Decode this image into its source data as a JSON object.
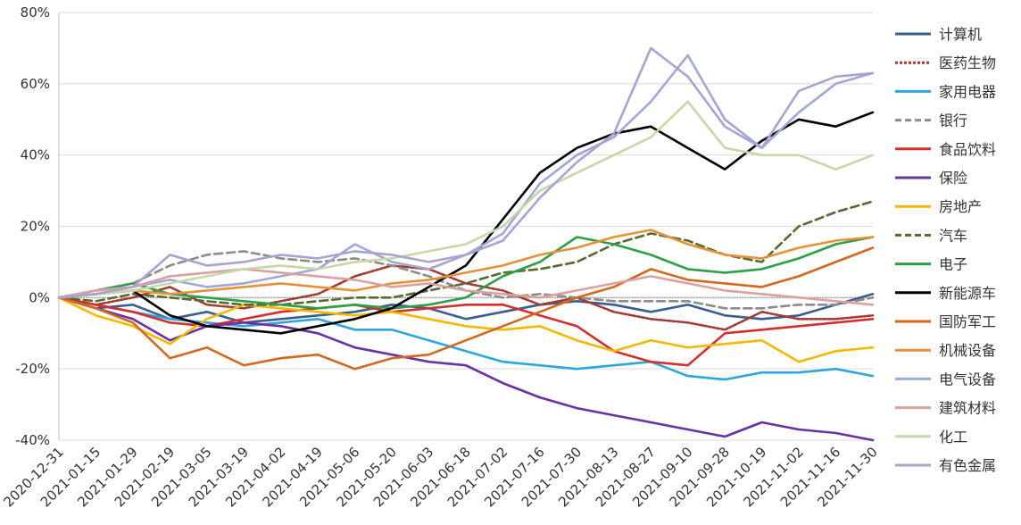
{
  "chart_data": {
    "type": "line",
    "title": "",
    "xlabel": "",
    "ylabel": "",
    "ylim": [
      -40,
      80
    ],
    "y_ticks": [
      "80%",
      "60%",
      "40%",
      "20%",
      "0%",
      "-20%",
      "-40%"
    ],
    "y_tick_values": [
      80,
      60,
      40,
      20,
      0,
      -20,
      -40
    ],
    "x_ticks": [
      "2020-12-31",
      "2021-01-15",
      "2021-01-29",
      "2021-02-19",
      "2021-03-05",
      "2021-03-19",
      "2021-04-02",
      "2021-04-19",
      "2021-05-06",
      "2021-05-20",
      "2021-06-03",
      "2021-06-18",
      "2021-07-02",
      "2021-07-16",
      "2021-07-30",
      "2021-08-13",
      "2021-08-27",
      "2021-09-10",
      "2021-09-28",
      "2021-10-19",
      "2021-11-02",
      "2021-11-16",
      "2021-11-30"
    ],
    "grid": "horizontal",
    "legend_position": "right",
    "series": [
      {
        "name": "计算机",
        "color": "#3a5f8f",
        "dash": "solid",
        "values": [
          0,
          -3,
          -2,
          -6,
          -4,
          -7,
          -6,
          -5,
          -4,
          -2,
          -3,
          -6,
          -4,
          -2,
          -1,
          -2,
          -4,
          -2,
          -5,
          -6,
          -5,
          -2,
          1
        ]
      },
      {
        "name": "医药生物",
        "color": "#a33a32",
        "dash": "cross",
        "values": [
          0,
          -2,
          0,
          3,
          -2,
          -3,
          -1,
          1,
          6,
          9,
          8,
          4,
          2,
          -2,
          0,
          -4,
          -6,
          -7,
          -9,
          -4,
          -6,
          -6,
          -5
        ]
      },
      {
        "name": "家用电器",
        "color": "#2ea6dd",
        "dash": "solid",
        "values": [
          0,
          -2,
          -4,
          -6,
          -7,
          -8,
          -7,
          -6,
          -9,
          -9,
          -12,
          -15,
          -18,
          -19,
          -20,
          -19,
          -18,
          -22,
          -23,
          -21,
          -21,
          -20,
          -22
        ]
      },
      {
        "name": "银行",
        "color": "#8c8c8c",
        "dash": "dashed",
        "values": [
          0,
          2,
          4,
          9,
          12,
          13,
          11,
          10,
          11,
          9,
          6,
          2,
          0,
          1,
          0,
          -1,
          -1,
          -1,
          -3,
          -3,
          -2,
          -2,
          0
        ]
      },
      {
        "name": "食品饮料",
        "color": "#d32f2f",
        "dash": "solid",
        "values": [
          0,
          -2,
          -4,
          -7,
          -8,
          -6,
          -4,
          -3,
          -2,
          -4,
          -3,
          -2,
          -2,
          -5,
          -8,
          -15,
          -18,
          -19,
          -10,
          -9,
          -8,
          -7,
          -6
        ]
      },
      {
        "name": "保险",
        "color": "#6b2fa6",
        "dash": "solid",
        "values": [
          0,
          -3,
          -6,
          -12,
          -8,
          -7,
          -8,
          -10,
          -14,
          -16,
          -18,
          -19,
          -24,
          -28,
          -31,
          -33,
          -35,
          -37,
          -39,
          -35,
          -37,
          -38,
          -40
        ]
      },
      {
        "name": "房地产",
        "color": "#f5b800",
        "dash": "solid",
        "values": [
          0,
          -5,
          -8,
          -13,
          -6,
          -2,
          -3,
          -4,
          -5,
          -4,
          -6,
          -8,
          -9,
          -8,
          -12,
          -15,
          -12,
          -14,
          -13,
          -12,
          -18,
          -15,
          -14
        ]
      },
      {
        "name": "汽车",
        "color": "#556b2f",
        "dash": "dashed",
        "values": [
          0,
          -1,
          1,
          0,
          -1,
          -2,
          -2,
          -1,
          0,
          0,
          2,
          4,
          7,
          8,
          10,
          15,
          18,
          16,
          12,
          10,
          20,
          24,
          27
        ]
      },
      {
        "name": "电子",
        "color": "#2e9e48",
        "dash": "solid",
        "values": [
          0,
          2,
          4,
          1,
          0,
          -1,
          -2,
          -3,
          -2,
          -3,
          -2,
          0,
          6,
          10,
          17,
          15,
          12,
          8,
          7,
          8,
          11,
          15,
          17
        ]
      },
      {
        "name": "新能源车",
        "color": "#000000",
        "dash": "solid",
        "values": [
          0,
          1,
          2,
          -5,
          -8,
          -9,
          -10,
          -8,
          -6,
          -3,
          3,
          9,
          22,
          35,
          42,
          46,
          48,
          42,
          36,
          44,
          50,
          48,
          52
        ]
      },
      {
        "name": "国防军工",
        "color": "#d2691e",
        "dash": "solid",
        "values": [
          0,
          -3,
          -7,
          -17,
          -14,
          -19,
          -17,
          -16,
          -20,
          -17,
          -16,
          -12,
          -8,
          -4,
          0,
          3,
          8,
          5,
          4,
          3,
          6,
          10,
          14
        ]
      },
      {
        "name": "机械设备",
        "color": "#e69138",
        "dash": "solid",
        "values": [
          0,
          1,
          2,
          1,
          2,
          3,
          4,
          3,
          2,
          4,
          5,
          7,
          9,
          12,
          14,
          17,
          19,
          15,
          12,
          11,
          14,
          16,
          17
        ]
      },
      {
        "name": "电气设备",
        "color": "#9fa8d6",
        "dash": "solid",
        "values": [
          0,
          2,
          3,
          5,
          3,
          4,
          6,
          8,
          15,
          10,
          8,
          12,
          18,
          32,
          40,
          45,
          55,
          68,
          50,
          42,
          52,
          60,
          63
        ]
      },
      {
        "name": "建筑材料",
        "color": "#dda0a0",
        "dash": "solid",
        "values": [
          0,
          2,
          3,
          6,
          7,
          8,
          7,
          6,
          5,
          3,
          4,
          2,
          1,
          0,
          2,
          4,
          6,
          4,
          2,
          1,
          0,
          -1,
          -2
        ]
      },
      {
        "name": "化工",
        "color": "#c6d8a8",
        "dash": "solid",
        "values": [
          0,
          1,
          2,
          4,
          6,
          8,
          9,
          8,
          10,
          11,
          13,
          15,
          20,
          30,
          35,
          40,
          45,
          55,
          42,
          40,
          40,
          36,
          40
        ]
      },
      {
        "name": "有色金属",
        "color": "#a9a4cf",
        "dash": "solid",
        "values": [
          0,
          1,
          3,
          12,
          9,
          10,
          12,
          11,
          13,
          12,
          10,
          12,
          16,
          28,
          38,
          46,
          70,
          62,
          48,
          42,
          58,
          62,
          63
        ]
      }
    ]
  }
}
